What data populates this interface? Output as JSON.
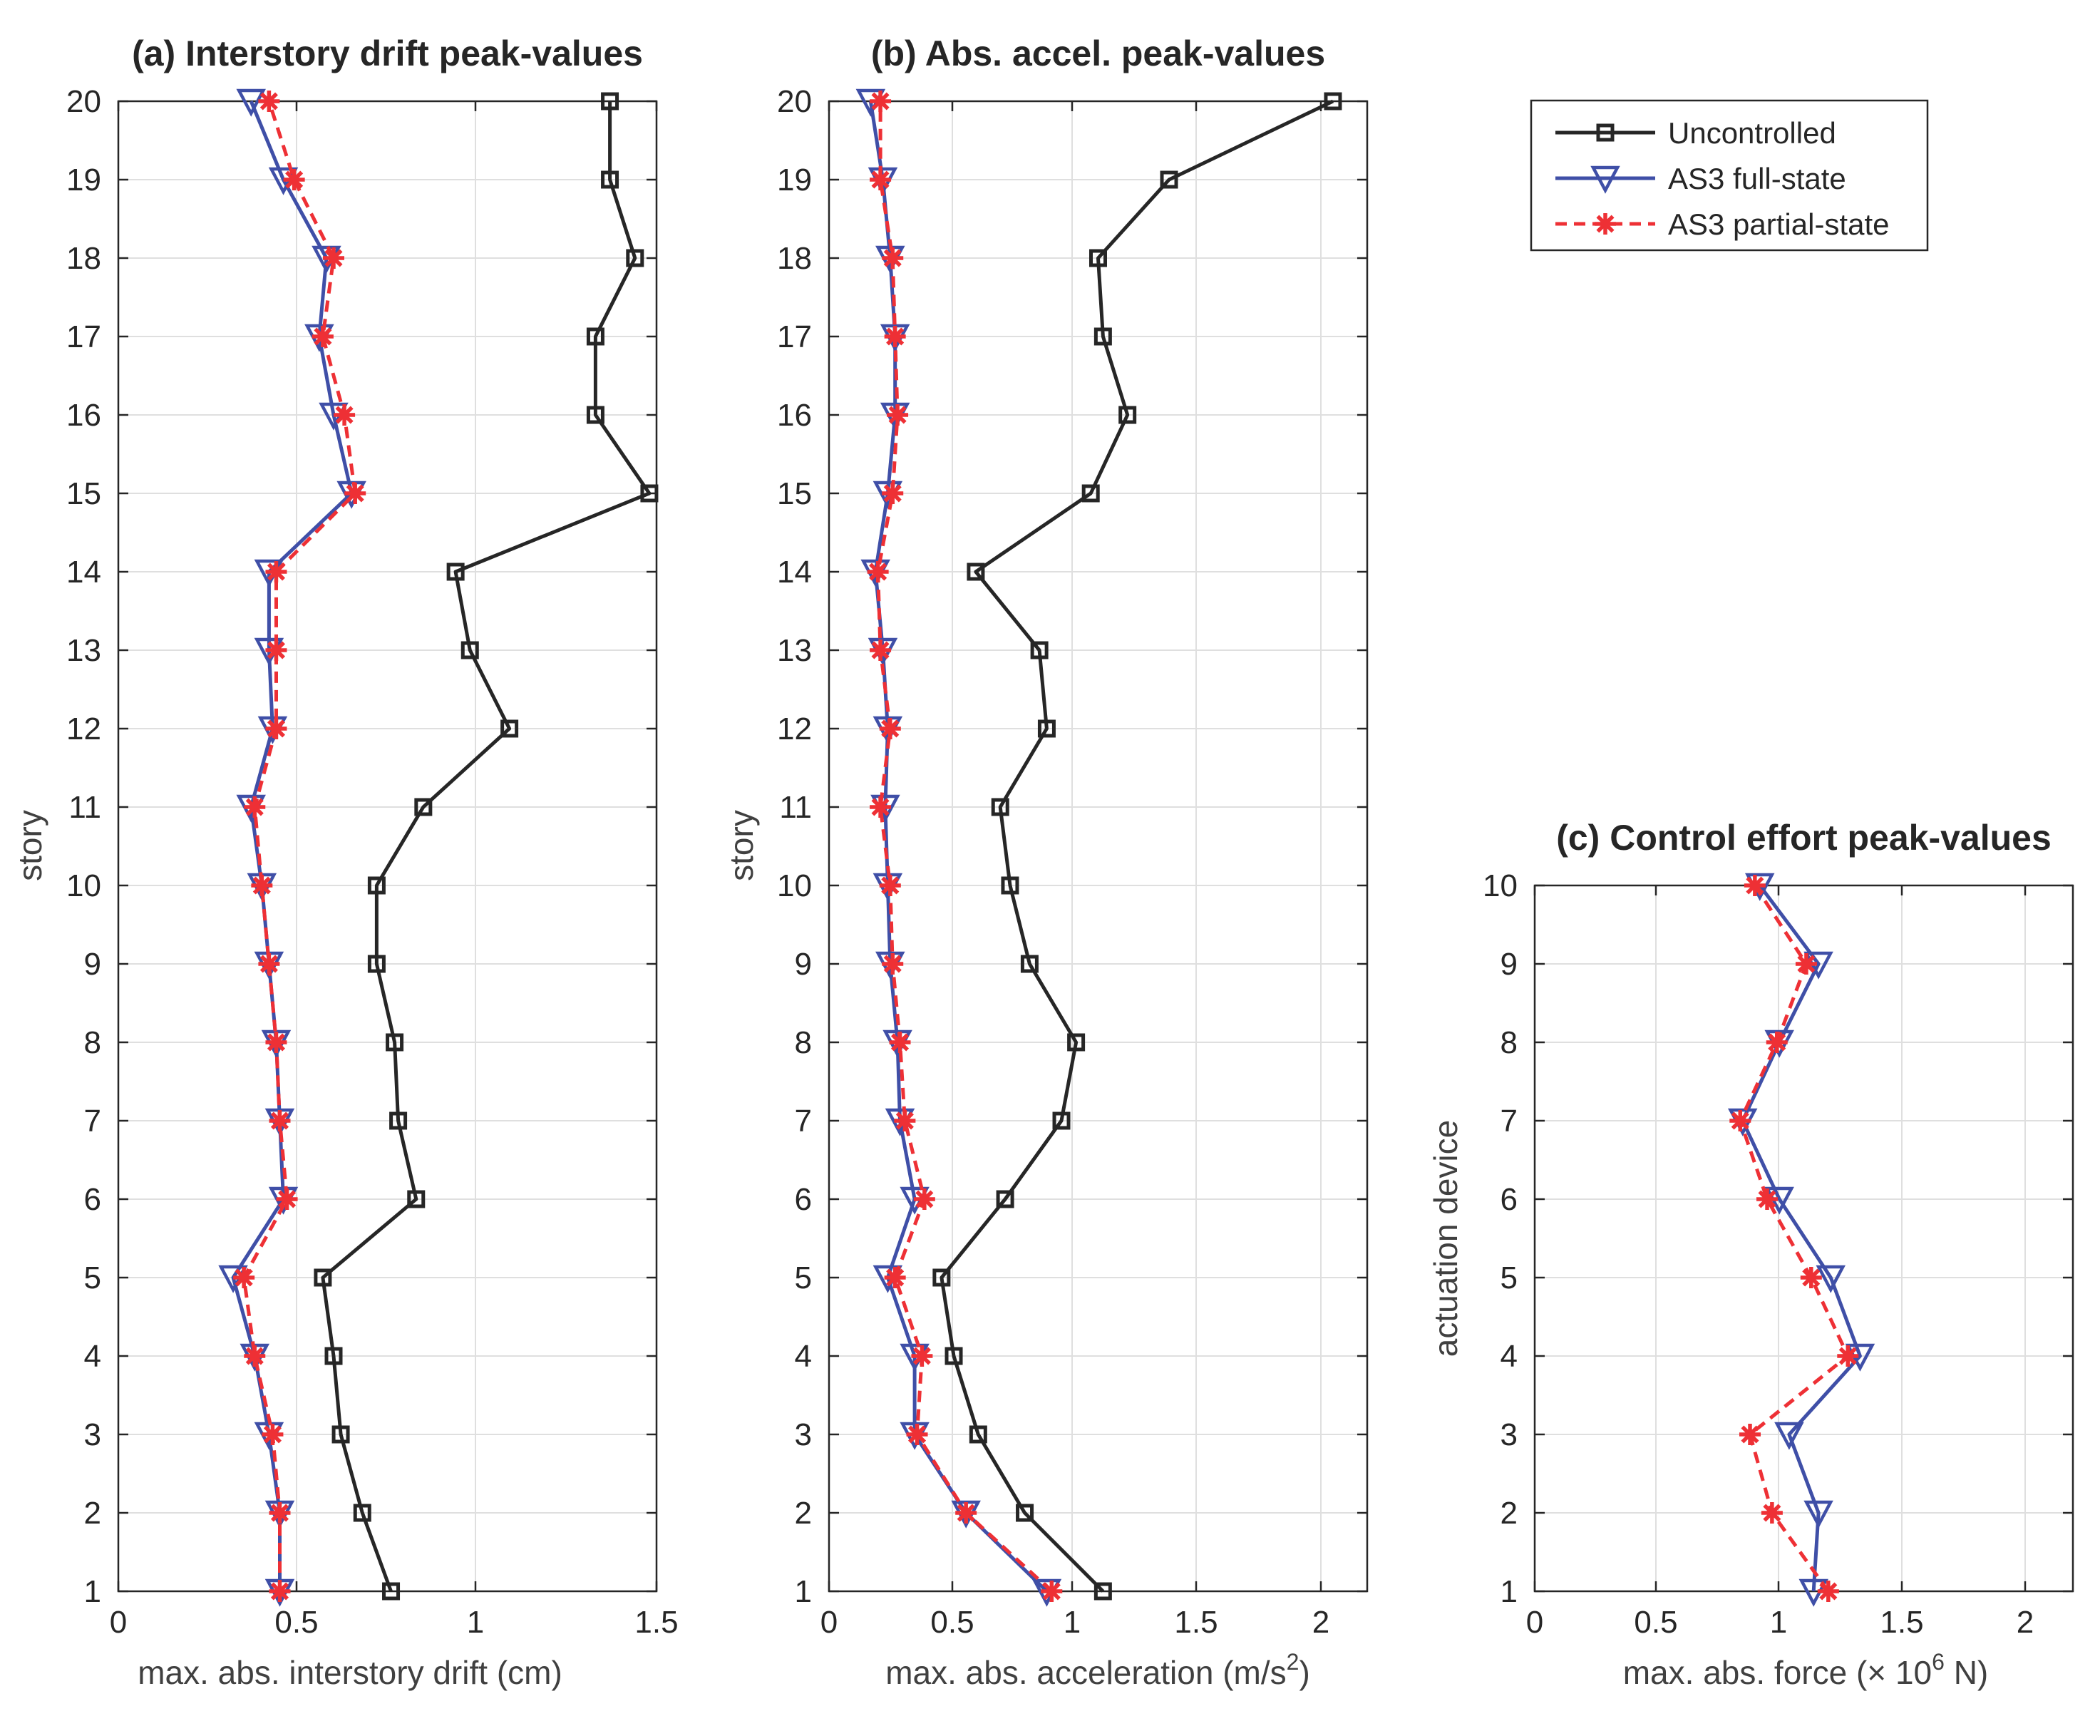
{
  "chart_data": [
    {
      "type": "line",
      "title": "(a) Interstory drift peak-values",
      "xlabel": "max. abs. interstory drift (cm)",
      "ylabel": "story",
      "xlim": [
        0,
        1.5
      ],
      "ylim": [
        1,
        20
      ],
      "xticks": [
        "0",
        "0.5",
        "1",
        "1.5"
      ],
      "yticks": [
        "1",
        "2",
        "3",
        "4",
        "5",
        "6",
        "7",
        "8",
        "9",
        "10",
        "11",
        "12",
        "13",
        "14",
        "15",
        "16",
        "17",
        "18",
        "19",
        "20"
      ],
      "grid": true,
      "y": [
        1,
        2,
        3,
        4,
        5,
        6,
        7,
        8,
        9,
        10,
        11,
        12,
        13,
        14,
        15,
        16,
        17,
        18,
        19,
        20
      ],
      "series": [
        {
          "name": "Uncontrolled",
          "values": [
            0.76,
            0.68,
            0.62,
            0.6,
            0.57,
            0.83,
            0.78,
            0.77,
            0.72,
            0.72,
            0.85,
            1.09,
            0.98,
            0.94,
            1.48,
            1.33,
            1.33,
            1.44,
            1.37,
            1.37
          ]
        },
        {
          "name": "AS3 full-state",
          "values": [
            0.45,
            0.45,
            0.42,
            0.38,
            0.32,
            0.46,
            0.45,
            0.44,
            0.42,
            0.4,
            0.37,
            0.43,
            0.42,
            0.42,
            0.65,
            0.6,
            0.56,
            0.58,
            0.46,
            0.37
          ]
        },
        {
          "name": "AS3 partial-state",
          "values": [
            0.45,
            0.45,
            0.43,
            0.38,
            0.35,
            0.47,
            0.45,
            0.44,
            0.42,
            0.4,
            0.38,
            0.44,
            0.44,
            0.44,
            0.66,
            0.63,
            0.57,
            0.6,
            0.49,
            0.42
          ]
        }
      ]
    },
    {
      "type": "line",
      "title": "(b) Abs. accel. peak-values",
      "xlabel": "max. abs. acceleration (m/s",
      "xlabel_sup": "2",
      "xlabel_end": ")",
      "ylabel": "story",
      "xlim": [
        0,
        2.2
      ],
      "ylim": [
        1,
        20
      ],
      "xticks": [
        "0",
        "0.5",
        "1",
        "1.5",
        "2"
      ],
      "yticks": [
        "1",
        "2",
        "3",
        "4",
        "5",
        "6",
        "7",
        "8",
        "9",
        "10",
        "11",
        "12",
        "13",
        "14",
        "15",
        "16",
        "17",
        "18",
        "19",
        "20"
      ],
      "grid": true,
      "y": [
        1,
        2,
        3,
        4,
        5,
        6,
        7,
        8,
        9,
        10,
        11,
        12,
        13,
        14,
        15,
        16,
        17,
        18,
        19,
        20
      ],
      "series": [
        {
          "name": "Uncontrolled",
          "values": [
            1.12,
            0.8,
            0.61,
            0.51,
            0.46,
            0.72,
            0.95,
            1.01,
            0.82,
            0.74,
            0.7,
            0.89,
            0.86,
            0.6,
            1.07,
            1.22,
            1.12,
            1.1,
            1.39,
            2.06
          ]
        },
        {
          "name": "AS3 full-state",
          "values": [
            0.89,
            0.56,
            0.35,
            0.35,
            0.24,
            0.35,
            0.29,
            0.28,
            0.25,
            0.24,
            0.23,
            0.24,
            0.22,
            0.19,
            0.24,
            0.27,
            0.27,
            0.25,
            0.22,
            0.17
          ]
        },
        {
          "name": "AS3 partial-state",
          "values": [
            0.91,
            0.56,
            0.36,
            0.38,
            0.27,
            0.39,
            0.31,
            0.29,
            0.26,
            0.25,
            0.21,
            0.25,
            0.21,
            0.2,
            0.26,
            0.28,
            0.27,
            0.26,
            0.21,
            0.21
          ]
        }
      ]
    },
    {
      "type": "line",
      "title": "(c) Control effort peak-values",
      "xlabel": "max. abs. force (",
      "xlabel_times": "×",
      "xlabel_pre": " 10",
      "xlabel_sup": "6",
      "xlabel_end": " N)",
      "ylabel": "actuation device",
      "xlim": [
        0,
        2.2
      ],
      "ylim": [
        1,
        10
      ],
      "xticks": [
        "0",
        "0.5",
        "1",
        "1.5",
        "2"
      ],
      "yticks": [
        "1",
        "2",
        "3",
        "4",
        "5",
        "6",
        "7",
        "8",
        "9",
        "10"
      ],
      "grid": true,
      "y": [
        1,
        2,
        3,
        4,
        5,
        6,
        7,
        8,
        9,
        10
      ],
      "series": [
        {
          "name": "AS3 full-state",
          "values": [
            1.14,
            1.16,
            1.04,
            1.33,
            1.21,
            1.0,
            0.85,
            1.0,
            1.16,
            0.92
          ]
        },
        {
          "name": "AS3 partial-state",
          "values": [
            1.2,
            0.97,
            0.88,
            1.28,
            1.13,
            0.95,
            0.84,
            0.99,
            1.11,
            0.9
          ]
        }
      ]
    }
  ],
  "legend": {
    "entries": [
      "Uncontrolled",
      "AS3 full-state",
      "AS3 partial-state"
    ],
    "placement": "top-right"
  },
  "colors": {
    "Uncontrolled": "#262626",
    "AS3 full-state": "#3f4fa7",
    "AS3 partial-state": "#ee3035"
  },
  "markers": {
    "Uncontrolled": "square",
    "AS3 full-state": "triangle-down",
    "AS3 partial-state": "asterisk"
  }
}
